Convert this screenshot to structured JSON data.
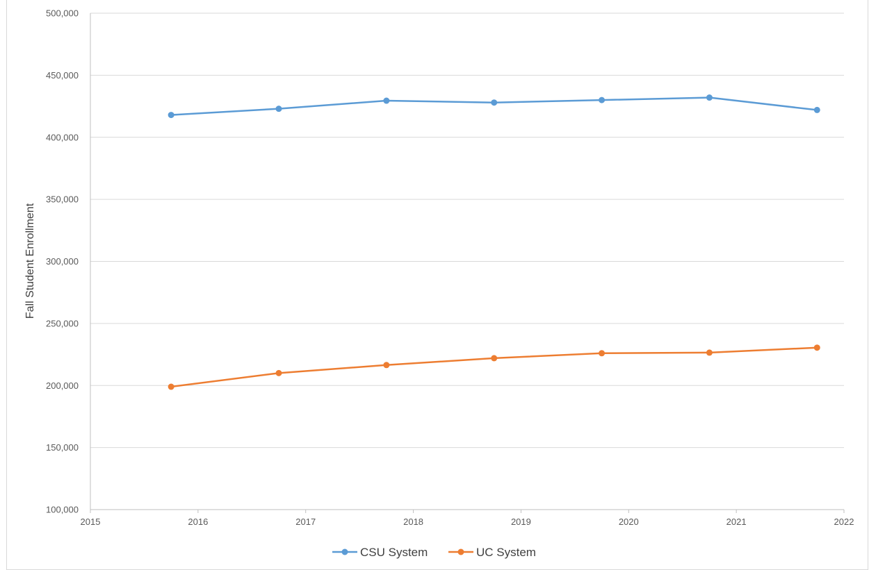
{
  "chart_data": {
    "type": "line",
    "title": "",
    "xlabel": "",
    "ylabel": "Fall Student Enrollment",
    "xlim": [
      2015,
      2022
    ],
    "ylim": [
      100000,
      500000
    ],
    "x_ticks": [
      "2015",
      "2016",
      "2017",
      "2018",
      "2019",
      "2020",
      "2021",
      "2022"
    ],
    "y_ticks": [
      "100,000",
      "150,000",
      "200,000",
      "250,000",
      "300,000",
      "350,000",
      "400,000",
      "450,000",
      "500,000"
    ],
    "grid": "horizontal",
    "legend_position": "bottom",
    "x": [
      2015.75,
      2016.75,
      2017.75,
      2018.75,
      2019.75,
      2020.75,
      2021.75
    ],
    "series": [
      {
        "name": "CSU System",
        "color": "#5b9bd5",
        "values": [
          418000,
          423000,
          429500,
          428000,
          430000,
          432000,
          422000
        ]
      },
      {
        "name": "UC System",
        "color": "#ed7d31",
        "values": [
          199000,
          210000,
          216500,
          222000,
          226000,
          226500,
          230500
        ]
      }
    ]
  }
}
